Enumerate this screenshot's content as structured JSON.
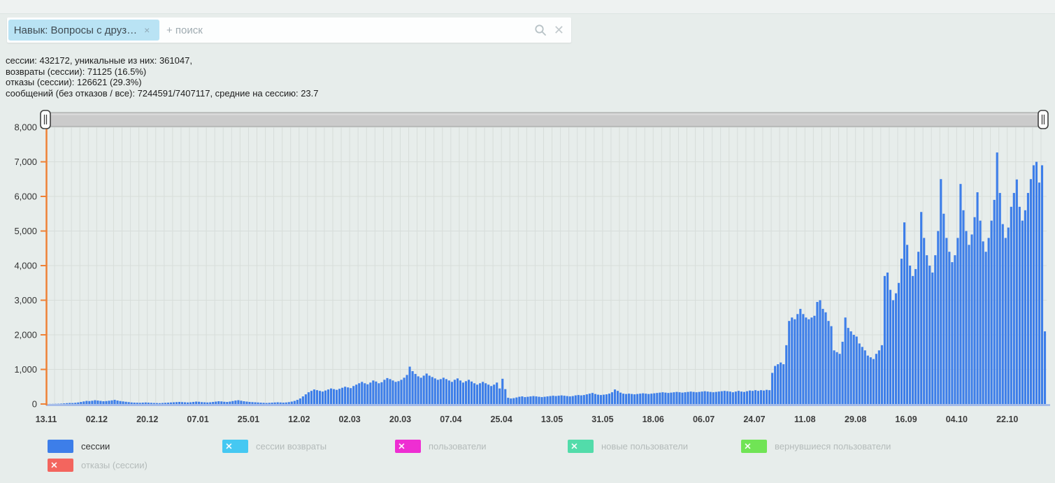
{
  "search_bar": {
    "filter_tag": "Навык: Вопросы с друз…",
    "tag_close": "×",
    "placeholder": "+ поиск",
    "clear_icon": "✕"
  },
  "stats": {
    "line1": "сессии: 432172, уникальные из них: 361047,",
    "line2": "возвраты (сессии): 71125 (16.5%)",
    "line3": "отказы (сессии): 126621 (29.3%)",
    "line4": "сообщений (без отказов / все): 7244591/7407117, средние на сессию: 23.7"
  },
  "chart_data": {
    "type": "bar",
    "title": "",
    "xlabel": "",
    "ylabel": "",
    "series_name": "сессии",
    "ylim": [
      0,
      8000
    ],
    "ytick_step": 1000,
    "ytick_labels": [
      "0",
      "1,000",
      "2,000",
      "3,000",
      "4,000",
      "5,000",
      "6,000",
      "7,000",
      "8,000"
    ],
    "xtick_labels": [
      "13.11",
      "02.12",
      "20.12",
      "07.01",
      "25.01",
      "12.02",
      "02.03",
      "20.03",
      "07.04",
      "25.04",
      "13.05",
      "31.05",
      "18.06",
      "06.07",
      "24.07",
      "11.08",
      "29.08",
      "16.09",
      "04.10",
      "22.10"
    ],
    "xtick_day_offsets": [
      0,
      18,
      36,
      54,
      72,
      90,
      108,
      126,
      144,
      162,
      180,
      198,
      216,
      234,
      252,
      270,
      288,
      306,
      324,
      342
    ],
    "grid": true,
    "legend_position": "bottom",
    "bar_color": "#3d7ee9",
    "axis_color": "#ee8136",
    "baseline_color": "#9cb4e8",
    "grid_color": "#d7ddda",
    "scrollbar_color": "#cbcbcb",
    "values": [
      2,
      3,
      4,
      6,
      8,
      12,
      18,
      25,
      30,
      28,
      35,
      45,
      60,
      75,
      90,
      85,
      95,
      110,
      100,
      90,
      80,
      85,
      95,
      105,
      120,
      100,
      85,
      75,
      65,
      55,
      45,
      40,
      38,
      35,
      40,
      45,
      40,
      35,
      30,
      28,
      25,
      30,
      35,
      40,
      45,
      50,
      55,
      60,
      55,
      50,
      45,
      50,
      60,
      70,
      65,
      55,
      50,
      45,
      50,
      60,
      70,
      80,
      75,
      65,
      60,
      70,
      85,
      100,
      110,
      95,
      80,
      70,
      60,
      55,
      50,
      45,
      40,
      35,
      30,
      35,
      40,
      45,
      50,
      45,
      40,
      45,
      55,
      70,
      90,
      120,
      160,
      220,
      280,
      340,
      380,
      420,
      400,
      380,
      360,
      390,
      420,
      450,
      430,
      410,
      440,
      470,
      500,
      480,
      460,
      520,
      560,
      600,
      640,
      600,
      570,
      620,
      680,
      650,
      600,
      630,
      700,
      750,
      720,
      680,
      640,
      660,
      700,
      760,
      840,
      1080,
      950,
      870,
      800,
      760,
      820,
      880,
      820,
      780,
      740,
      700,
      720,
      760,
      720,
      680,
      640,
      700,
      740,
      680,
      620,
      660,
      700,
      650,
      600,
      560,
      600,
      640,
      600,
      560,
      520,
      560,
      620,
      450,
      730,
      430,
      180,
      160,
      170,
      190,
      210,
      220,
      200,
      210,
      220,
      230,
      220,
      210,
      200,
      210,
      220,
      230,
      240,
      230,
      240,
      250,
      240,
      230,
      220,
      230,
      250,
      260,
      250,
      260,
      280,
      300,
      320,
      290,
      270,
      260,
      270,
      280,
      300,
      340,
      420,
      380,
      330,
      300,
      290,
      300,
      290,
      280,
      290,
      300,
      310,
      300,
      290,
      300,
      310,
      320,
      330,
      340,
      330,
      320,
      330,
      340,
      350,
      340,
      330,
      340,
      350,
      360,
      350,
      340,
      350,
      360,
      370,
      360,
      350,
      340,
      350,
      360,
      370,
      380,
      370,
      360,
      340,
      360,
      380,
      360,
      350,
      370,
      390,
      380,
      400,
      380,
      400,
      390,
      410,
      400,
      900,
      1100,
      1150,
      1200,
      1150,
      1700,
      2400,
      2500,
      2450,
      2600,
      2750,
      2600,
      2500,
      2450,
      2500,
      2550,
      2950,
      3000,
      2750,
      2650,
      2400,
      2250,
      1550,
      1500,
      1450,
      1800,
      2500,
      2200,
      2100,
      2000,
      1950,
      1750,
      1650,
      1550,
      1400,
      1350,
      1300,
      1450,
      1550,
      1700,
      3700,
      3800,
      3300,
      3000,
      3200,
      3500,
      4200,
      5250,
      4600,
      4000,
      3700,
      3900,
      4400,
      5550,
      4800,
      4300,
      4000,
      3800,
      4300,
      5000,
      6500,
      5500,
      4800,
      4400,
      4100,
      4300,
      4800,
      6360,
      5600,
      5000,
      4600,
      4900,
      5400,
      6120,
      5300,
      4700,
      4400,
      4800,
      5300,
      5900,
      7270,
      6100,
      5200,
      4800,
      5100,
      5700,
      6100,
      6490,
      5700,
      5300,
      5600,
      6100,
      6500,
      6900,
      7000,
      6400,
      6900,
      2100
    ]
  },
  "legend": {
    "items": [
      {
        "label": "сессии",
        "color": "#3d7ee9",
        "active": true
      },
      {
        "label": "сессии возвраты",
        "color": "#45c8f2",
        "active": false
      },
      {
        "label": "пользователи",
        "color": "#ee2ed2",
        "active": false
      },
      {
        "label": "новые пользователи",
        "color": "#52dcaa",
        "active": false
      },
      {
        "label": "вернувшиеся пользователи",
        "color": "#70e455",
        "active": false
      },
      {
        "label": "отказы (сессии)",
        "color": "#f3655e",
        "active": false
      }
    ]
  }
}
